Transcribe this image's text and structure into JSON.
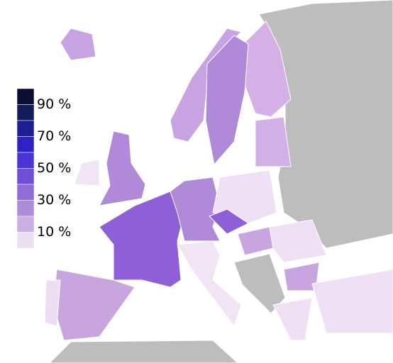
{
  "legend": {
    "colors": [
      "#0c0c35",
      "#121a5a",
      "#1c1f94",
      "#2e22c4",
      "#4b35d4",
      "#6d50d8",
      "#8f6cd8",
      "#ac8bdb",
      "#cbaee2",
      "#ecdff3"
    ],
    "labels": [
      "90 %",
      "70 %",
      "50 %",
      "30 %",
      "10 %"
    ]
  }
}
